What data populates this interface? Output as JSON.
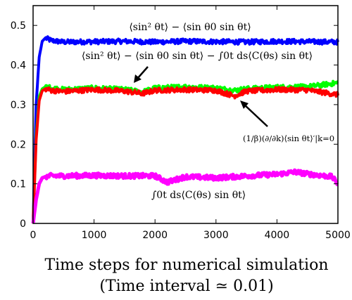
{
  "chart_data": {
    "type": "line",
    "xlabel": "Time steps for numerical simulation",
    "xlabel_line2": "(Time interval ≃ 0.01)",
    "xlim": [
      0,
      5000
    ],
    "ylim": [
      0,
      0.55
    ],
    "x_ticks": [
      "0",
      "1000",
      "2000",
      "3000",
      "4000",
      "5000"
    ],
    "y_ticks": [
      "0",
      "0.1",
      "0.2",
      "0.3",
      "0.4",
      "0.5"
    ],
    "x_tick_values": [
      0,
      1000,
      2000,
      3000,
      4000,
      5000
    ],
    "y_tick_values": [
      0,
      0.1,
      0.2,
      0.3,
      0.4,
      0.5
    ],
    "grid": false,
    "series": [
      {
        "name": "⟨sin² θt⟩ − ⟨sin θ0 sin θt⟩",
        "color": "#0000ff",
        "x": [
          0,
          50,
          100,
          150,
          200,
          300,
          500,
          1000,
          1500,
          2000,
          2500,
          3000,
          3500,
          4000,
          4500,
          5000
        ],
        "y": [
          0,
          0.3,
          0.42,
          0.46,
          0.468,
          0.462,
          0.458,
          0.459,
          0.46,
          0.458,
          0.46,
          0.459,
          0.458,
          0.46,
          0.459,
          0.458
        ]
      },
      {
        "name": "⟨sin² θt⟩ − ⟨sin θ0 sin θt⟩ − ∫0t ds⟨C(θs) sin θt⟩",
        "color": "#00ff00",
        "x": [
          0,
          50,
          100,
          150,
          200,
          300,
          500,
          800,
          1000,
          1500,
          1800,
          2000,
          2500,
          3000,
          3300,
          3500,
          4000,
          4500,
          5000
        ],
        "y": [
          0,
          0.22,
          0.32,
          0.34,
          0.345,
          0.342,
          0.338,
          0.34,
          0.342,
          0.338,
          0.332,
          0.342,
          0.345,
          0.342,
          0.336,
          0.34,
          0.344,
          0.345,
          0.355
        ]
      },
      {
        "name": "(1/β)(∂/∂k)⟨sin θt⟩′|k=0",
        "color": "#ff0000",
        "x": [
          0,
          50,
          100,
          150,
          200,
          300,
          500,
          800,
          1000,
          1500,
          1800,
          2000,
          2500,
          3000,
          3300,
          3500,
          4000,
          4500,
          5000
        ],
        "y": [
          0,
          0.21,
          0.31,
          0.335,
          0.34,
          0.336,
          0.333,
          0.336,
          0.338,
          0.334,
          0.328,
          0.336,
          0.338,
          0.336,
          0.322,
          0.334,
          0.338,
          0.337,
          0.325
        ]
      },
      {
        "name": "∫0t ds⟨C(θs) sin θt⟩",
        "color": "#ff00ff",
        "x": [
          0,
          50,
          100,
          150,
          200,
          300,
          500,
          1000,
          1500,
          2000,
          2200,
          2500,
          3000,
          3500,
          4000,
          4300,
          4500,
          4900,
          5000
        ],
        "y": [
          0,
          0.06,
          0.1,
          0.115,
          0.118,
          0.12,
          0.12,
          0.121,
          0.12,
          0.12,
          0.104,
          0.118,
          0.115,
          0.12,
          0.124,
          0.13,
          0.125,
          0.118,
          0.1
        ]
      }
    ],
    "annotations": [
      {
        "text": "⟨sin² θt⟩ − ⟨sin θ0 sin θt⟩"
      },
      {
        "text": "⟨sin² θt⟩ − ⟨sin θ0 sin θt⟩ − ∫0t ds⟨C(θs) sin θt⟩"
      },
      {
        "text": "(1/β)(∂/∂k)⟨sin θt⟩′|k=0"
      },
      {
        "text": "∫0t ds⟨C(θs) sin θt⟩"
      }
    ]
  }
}
